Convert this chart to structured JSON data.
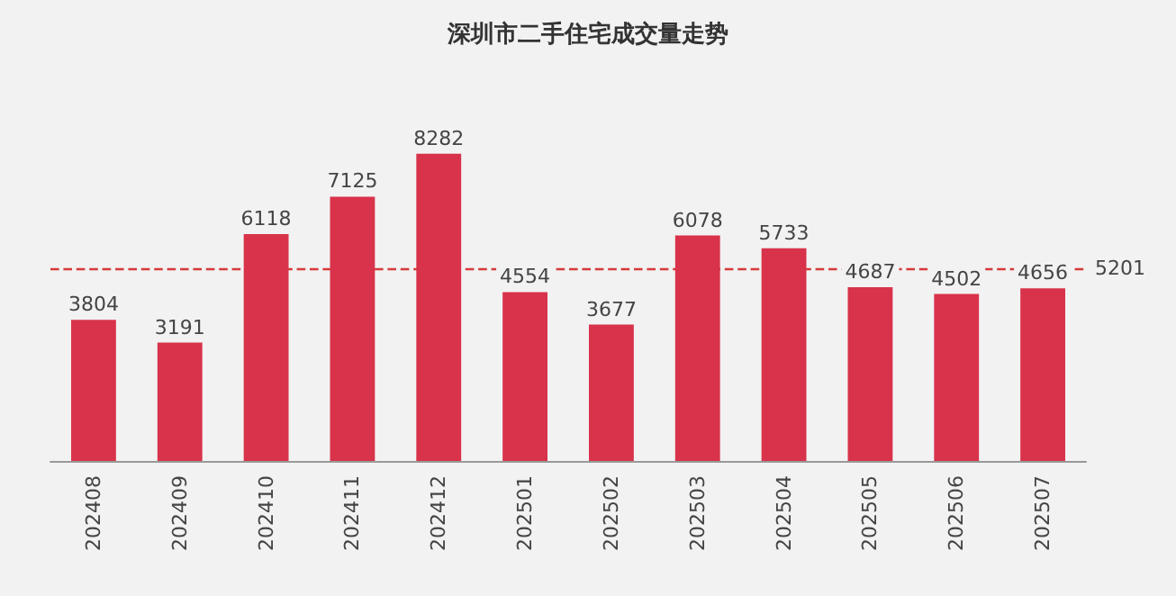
{
  "chart_data": {
    "type": "bar",
    "title": "深圳市二手住宅成交量走势",
    "categories": [
      "202408",
      "202409",
      "202410",
      "202411",
      "202412",
      "202501",
      "202502",
      "202503",
      "202504",
      "202505",
      "202506",
      "202507"
    ],
    "values": [
      3804,
      3191,
      6118,
      7125,
      8282,
      4554,
      3677,
      6078,
      5733,
      4687,
      4502,
      4656
    ],
    "color": "#d8334a",
    "data_labels": true,
    "ref_lines": [
      {
        "axis": "y",
        "value": 5201,
        "label": "5201",
        "color": "#d63a3a",
        "line_style": "dashed"
      }
    ]
  }
}
